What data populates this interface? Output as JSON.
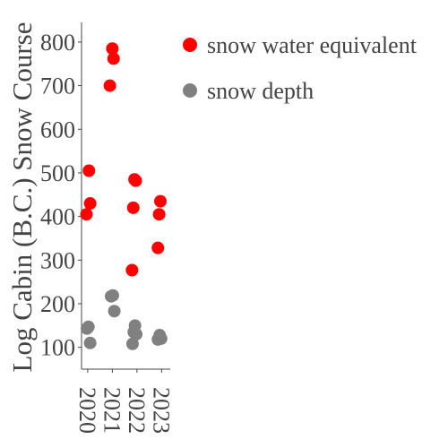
{
  "chart_data": {
    "type": "scatter",
    "ylabel": "Log Cabin (B.C.) Snow Course",
    "xlabel": "",
    "x_ticks": [
      "2020",
      "2021",
      "2022",
      "2023"
    ],
    "y_ticks": [
      100,
      200,
      300,
      400,
      500,
      600,
      700,
      800
    ],
    "ylim": [
      50,
      845
    ],
    "xlim": [
      2019.75,
      2023.35
    ],
    "grid": false,
    "legend": "top-right",
    "series": [
      {
        "name": "snow water equivalent",
        "color": "#ff0000",
        "points": [
          {
            "x": 2019.95,
            "y": 405
          },
          {
            "x": 2020.05,
            "y": 505
          },
          {
            "x": 2020.1,
            "y": 430
          },
          {
            "x": 2020.9,
            "y": 700
          },
          {
            "x": 2021.0,
            "y": 785
          },
          {
            "x": 2021.05,
            "y": 762
          },
          {
            "x": 2021.8,
            "y": 277
          },
          {
            "x": 2021.85,
            "y": 420
          },
          {
            "x": 2021.9,
            "y": 485
          },
          {
            "x": 2021.95,
            "y": 482
          },
          {
            "x": 2022.85,
            "y": 328
          },
          {
            "x": 2022.9,
            "y": 405
          },
          {
            "x": 2022.95,
            "y": 435
          }
        ]
      },
      {
        "name": "snow depth",
        "color": "#808080",
        "points": [
          {
            "x": 2019.97,
            "y": 143
          },
          {
            "x": 2020.03,
            "y": 147
          },
          {
            "x": 2020.1,
            "y": 110
          },
          {
            "x": 2020.95,
            "y": 217
          },
          {
            "x": 2021.02,
            "y": 219
          },
          {
            "x": 2021.08,
            "y": 183
          },
          {
            "x": 2021.82,
            "y": 108
          },
          {
            "x": 2021.87,
            "y": 135
          },
          {
            "x": 2021.92,
            "y": 150
          },
          {
            "x": 2021.97,
            "y": 130
          },
          {
            "x": 2022.85,
            "y": 118
          },
          {
            "x": 2022.92,
            "y": 128
          },
          {
            "x": 2022.98,
            "y": 120
          }
        ]
      }
    ]
  }
}
